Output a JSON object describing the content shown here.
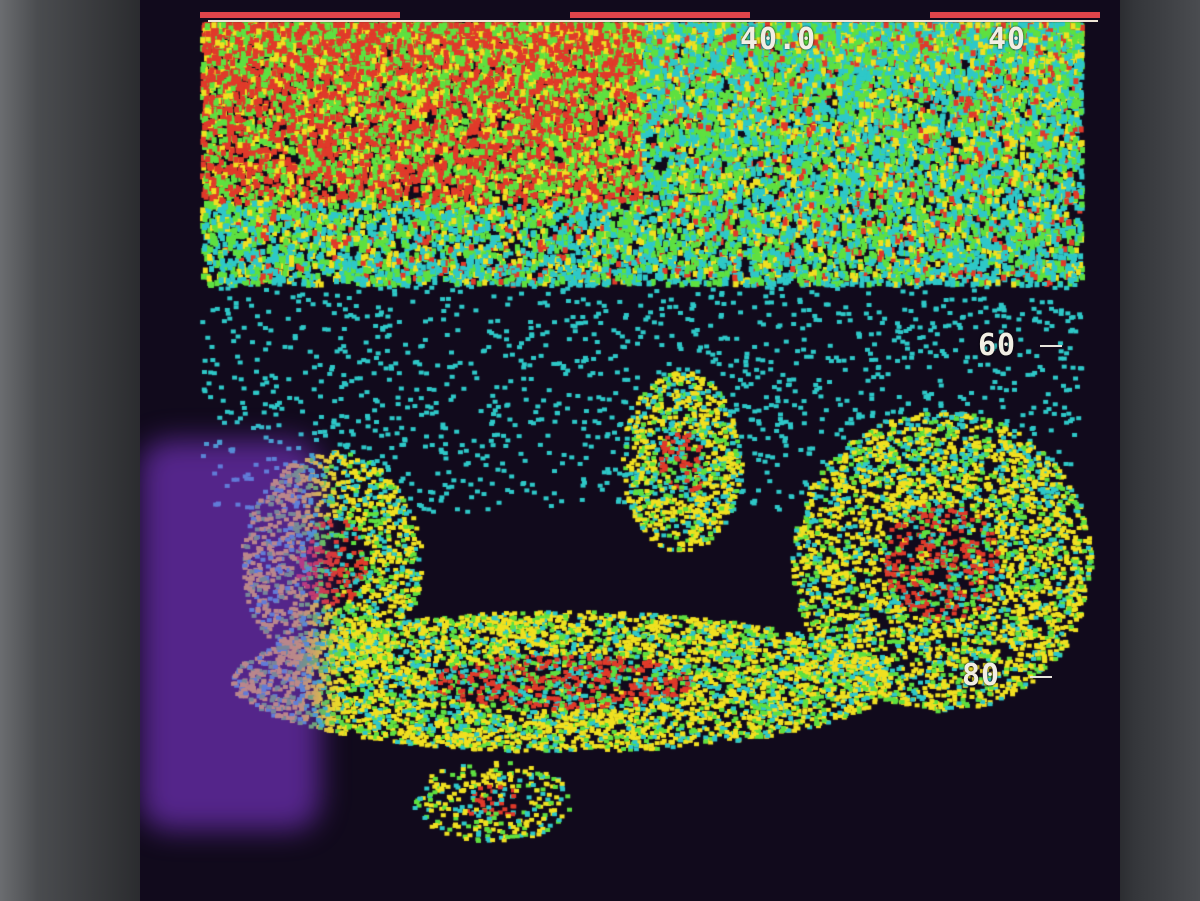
{
  "display": {
    "type": "sonar fishfinder photo",
    "range_readout": "40.0",
    "depth_scale": [
      "40",
      "60",
      "80"
    ],
    "colors": {
      "strong": "#e03a2a",
      "medium": "#f0e020",
      "weak": "#2ec8c8",
      "mid": "#5ee040",
      "background": "#110a1c"
    }
  }
}
